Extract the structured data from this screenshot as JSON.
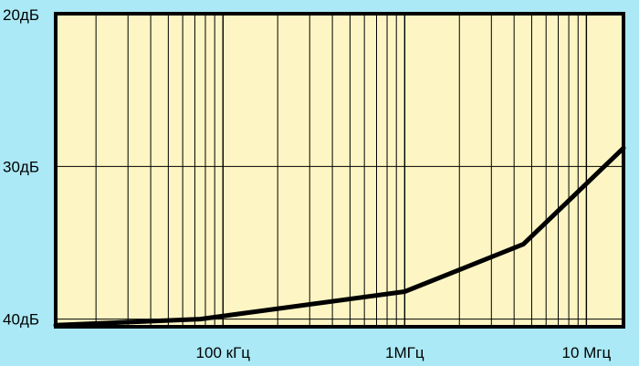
{
  "chart_data": {
    "type": "line",
    "x_scale": "log",
    "y_inverted": true,
    "xlim": [
      12000,
      16000000
    ],
    "ylim": [
      40.5,
      20
    ],
    "grid": true,
    "y_ticks": [
      {
        "value": 20,
        "label": "20дБ"
      },
      {
        "value": 30,
        "label": "30дБ"
      },
      {
        "value": 40,
        "label": "40дБ"
      }
    ],
    "x_ticks": [
      {
        "value": 100000,
        "label": "100 кГц"
      },
      {
        "value": 1000000,
        "label": "1МГц"
      },
      {
        "value": 10000000,
        "label": "10 Мгц"
      }
    ],
    "series": [
      {
        "points": [
          [
            12000,
            40.4
          ],
          [
            75000,
            40.0
          ],
          [
            1000000,
            38.2
          ],
          [
            4500000,
            35.1
          ],
          [
            16000000,
            28.8
          ]
        ]
      }
    ]
  },
  "colors": {
    "background": "#aae9f5",
    "plot_area": "#fdf6c4",
    "frame": "#000000",
    "grid": "#000000",
    "line": "#000000"
  }
}
